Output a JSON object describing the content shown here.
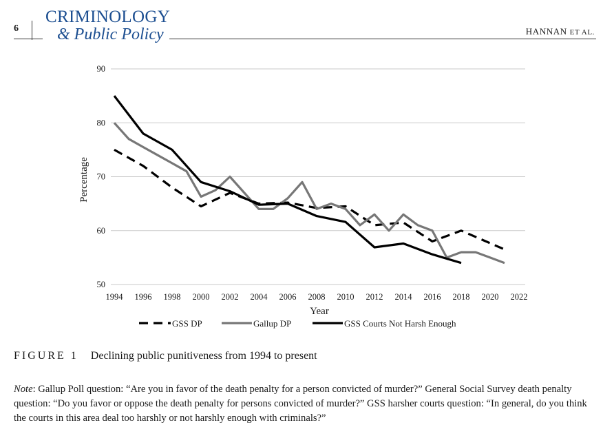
{
  "header": {
    "page_number": "6",
    "journal_line1": "CRIMINOLOGY",
    "journal_line2": "& Public Policy",
    "authors_main": "HANNAN",
    "authors_suffix": "ET AL."
  },
  "chart_data": {
    "type": "line",
    "title": "",
    "xlabel": "Year",
    "ylabel": "Percentage",
    "xlim": [
      1994,
      2022
    ],
    "ylim": [
      50,
      90
    ],
    "x_ticks": [
      1994,
      1996,
      1998,
      2000,
      2002,
      2004,
      2006,
      2008,
      2010,
      2012,
      2014,
      2016,
      2018,
      2020,
      2022
    ],
    "y_ticks": [
      50,
      60,
      70,
      80,
      90
    ],
    "grid": true,
    "legend": "bottom",
    "series": [
      {
        "name": "GSS DP",
        "style": "dashed",
        "color": "#000000",
        "x": [
          1994,
          1996,
          1998,
          2000,
          2002,
          2004,
          2006,
          2008,
          2010,
          2012,
          2014,
          2016,
          2018,
          2021
        ],
        "y": [
          75,
          72,
          68,
          64.5,
          67,
          65,
          65.2,
          64.2,
          64.5,
          61,
          61.5,
          58,
          60,
          56.5
        ]
      },
      {
        "name": "Gallup DP",
        "style": "solid",
        "color": "#777777",
        "x": [
          1994,
          1995,
          1996,
          1997,
          1998,
          1999,
          2000,
          2001,
          2002,
          2003,
          2004,
          2005,
          2006,
          2007,
          2008,
          2009,
          2010,
          2011,
          2012,
          2013,
          2014,
          2015,
          2016,
          2017,
          2018,
          2019,
          2020,
          2021
        ],
        "y": [
          80,
          77,
          75.5,
          74,
          72.5,
          71,
          66.3,
          67.5,
          70,
          67,
          64,
          64,
          66,
          69,
          64,
          65,
          64,
          61,
          63,
          60,
          63,
          61,
          60,
          55,
          56,
          56,
          55,
          54
        ]
      },
      {
        "name": "GSS Courts Not Harsh Enough",
        "style": "solid",
        "color": "#000000",
        "x": [
          1994,
          1996,
          1998,
          2000,
          2002,
          2004,
          2006,
          2008,
          2010,
          2012,
          2014,
          2016,
          2018
        ],
        "y": [
          85,
          78,
          75,
          69,
          67.3,
          64.8,
          65,
          62.7,
          61.6,
          56.9,
          57.6,
          55.6,
          54
        ]
      }
    ]
  },
  "figure": {
    "label": "FIGURE 1",
    "caption": "Declining public punitiveness from 1994 to present"
  },
  "note": {
    "label": "Note",
    "text": ": Gallup Poll question: “Are you in favor of the death penalty for a person convicted of murder?” General Social Survey death penalty question: “Do you favor or oppose the death penalty for persons convicted of murder?” GSS harsher courts question: “In general, do you think the courts in this area deal too harshly or not harshly enough with criminals?”"
  }
}
